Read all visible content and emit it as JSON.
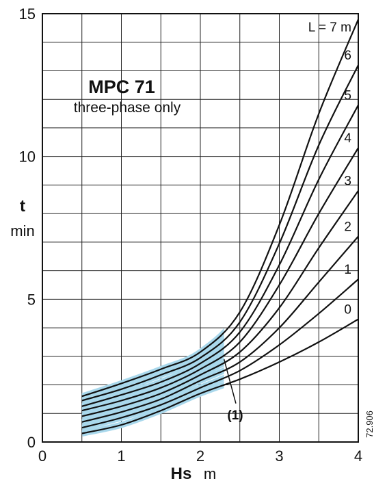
{
  "chart_data": {
    "type": "line",
    "title": "MPC 71",
    "subtitle": "three-phase only",
    "xlabel": "Hs",
    "xunit": "m",
    "ylabel": "t",
    "yunit": "min",
    "xlim": [
      0,
      4
    ],
    "ylim": [
      0,
      15
    ],
    "x_ticks": [
      "0",
      "1",
      "2",
      "3",
      "4"
    ],
    "y_ticks": [
      "0",
      "5",
      "10",
      "15"
    ],
    "grid": true,
    "legend_title": "L = 7 m",
    "note_label": "(1)",
    "figure_ref": "72.906",
    "shaded_region_x": [
      0.5,
      2.3
    ],
    "shade_color": "#a9d8ec",
    "line_color": "#111111",
    "series": [
      {
        "name": "0",
        "x": [
          0.5,
          1.0,
          1.5,
          2.0,
          2.5,
          3.0,
          3.5,
          4.0
        ],
        "y": [
          0.3,
          0.6,
          1.1,
          1.7,
          2.2,
          2.8,
          3.5,
          4.3
        ]
      },
      {
        "name": "1",
        "x": [
          0.5,
          1.0,
          1.5,
          2.0,
          2.5,
          3.0,
          3.5,
          4.0
        ],
        "y": [
          0.5,
          0.85,
          1.3,
          1.9,
          2.5,
          3.4,
          4.5,
          5.7
        ]
      },
      {
        "name": "2",
        "x": [
          0.5,
          1.0,
          1.5,
          2.0,
          2.5,
          3.0,
          3.5,
          4.0
        ],
        "y": [
          0.7,
          1.05,
          1.5,
          2.15,
          2.8,
          4.0,
          5.6,
          7.2
        ]
      },
      {
        "name": "3",
        "x": [
          0.5,
          1.0,
          1.5,
          2.0,
          2.5,
          3.0,
          3.5,
          4.0
        ],
        "y": [
          0.9,
          1.25,
          1.7,
          2.35,
          3.15,
          4.7,
          6.8,
          8.8
        ]
      },
      {
        "name": "4",
        "x": [
          0.5,
          1.0,
          1.5,
          2.0,
          2.5,
          3.0,
          3.5,
          4.0
        ],
        "y": [
          1.1,
          1.45,
          1.9,
          2.55,
          3.5,
          5.5,
          8.0,
          10.3
        ]
      },
      {
        "name": "5",
        "x": [
          0.5,
          1.0,
          1.5,
          2.0,
          2.5,
          3.0,
          3.5,
          4.0
        ],
        "y": [
          1.25,
          1.65,
          2.1,
          2.75,
          3.85,
          6.2,
          9.2,
          11.8
        ]
      },
      {
        "name": "6",
        "x": [
          0.5,
          1.0,
          1.5,
          2.0,
          2.5,
          3.0,
          3.5,
          4.0
        ],
        "y": [
          1.45,
          1.85,
          2.35,
          2.95,
          4.2,
          6.95,
          10.4,
          13.2
        ]
      },
      {
        "name": "L = 7 m",
        "x": [
          0.5,
          1.0,
          1.5,
          2.0,
          2.5,
          3.0,
          3.5,
          4.0
        ],
        "y": [
          1.6,
          2.05,
          2.55,
          3.15,
          4.55,
          7.6,
          11.5,
          14.8
        ]
      }
    ]
  }
}
